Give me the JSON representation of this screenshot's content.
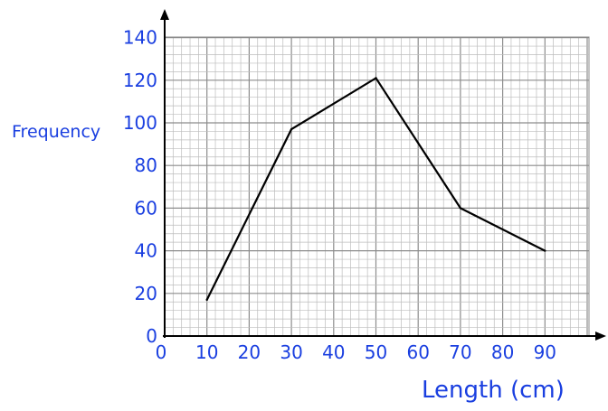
{
  "chart_data": {
    "type": "line",
    "title": "",
    "xlabel": "Length (cm)",
    "ylabel": "Frequency",
    "xlim": [
      0,
      100
    ],
    "ylim": [
      0,
      140
    ],
    "x_ticks": [
      0,
      10,
      20,
      30,
      40,
      50,
      60,
      70,
      80,
      90
    ],
    "y_ticks": [
      0,
      20,
      40,
      60,
      80,
      100,
      120,
      140
    ],
    "grid": true,
    "legend": "none",
    "series": [
      {
        "x": [
          10,
          30,
          50,
          70,
          90
        ],
        "values": [
          17,
          97,
          121,
          60,
          40
        ]
      }
    ]
  },
  "colors": {
    "text": "#1a3fe0",
    "line": "#000000",
    "grid_minor": "#bdbdbd",
    "grid_major": "#8c8c8c"
  }
}
